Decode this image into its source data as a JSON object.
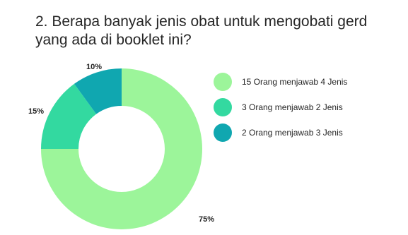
{
  "chart_data": {
    "type": "pie",
    "title": "2. Berapa banyak jenis obat untuk mengobati gerd yang ada di booklet ini?",
    "categories": [
      "15 Orang menjawab 4 Jenis",
      "3 Orang menjawab 2 Jenis",
      "2 Orang menjawab 3 Jenis"
    ],
    "values": [
      75,
      15,
      10
    ],
    "labels": [
      "75%",
      "15%",
      "10%"
    ],
    "colors": [
      "#9cf59a",
      "#33d9a0",
      "#10a7b0"
    ],
    "legend_position": "right"
  }
}
